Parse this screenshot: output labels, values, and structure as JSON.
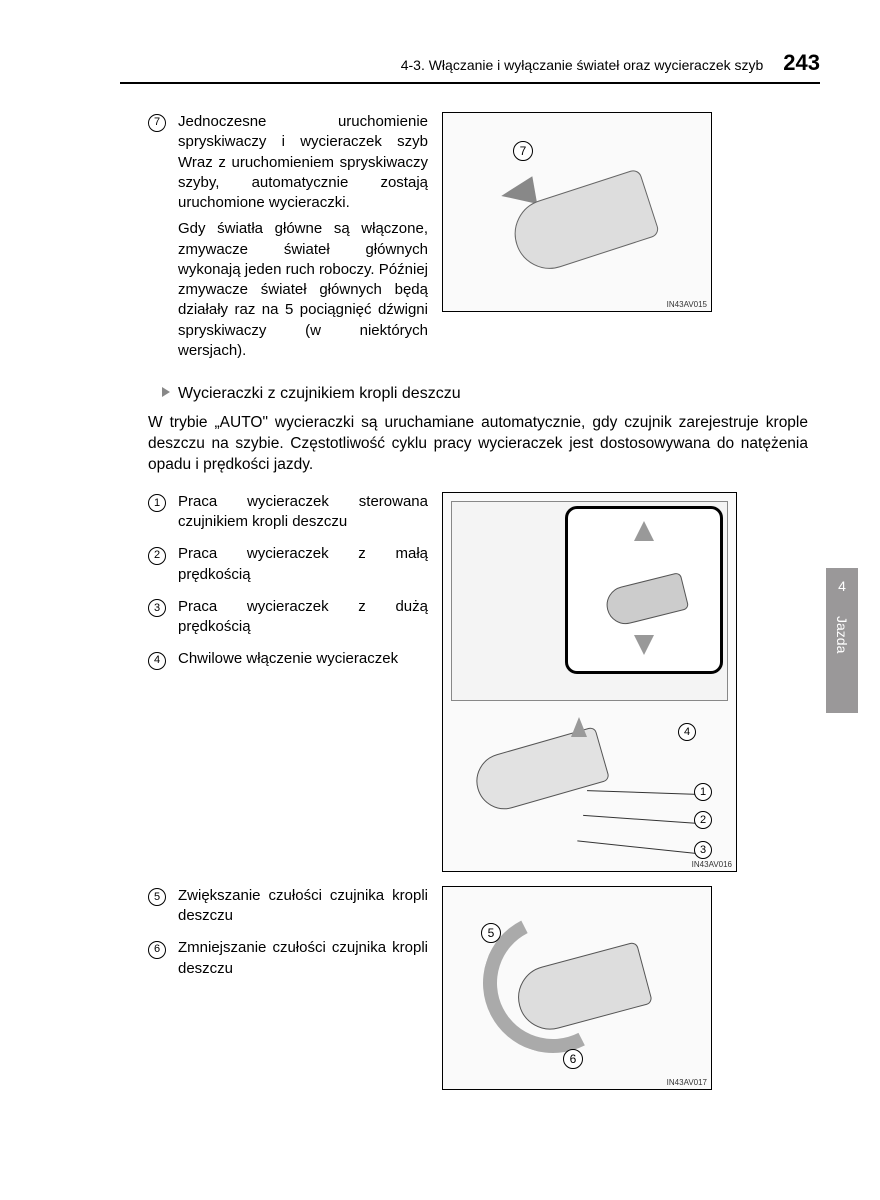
{
  "header": {
    "section": "4-3. Włączanie i wyłączanie świateł oraz wycieraczek szyb",
    "page_number": "243"
  },
  "side_tab": {
    "chapter": "4",
    "label": "Jazda"
  },
  "item7": {
    "num": "7",
    "title": "Jednoczesne uruchomienie spryskiwaczy i wycieraczek szyb",
    "p1": "Wraz z uruchomieniem spryskiwaczy szyby, automatycznie zostają uruchomione wycieraczki.",
    "p2": "Gdy światła główne są włączone, zmywacze świateł głównych wykonają jeden ruch roboczy. Później zmywacze świateł głównych będą działały raz na 5 pociągnięć dźwigni spryskiwaczy (w niektórych wersjach)."
  },
  "rain_sensor": {
    "subheading": "Wycieraczki z czujnikiem kropli deszczu",
    "intro": "W trybie „AUTO\" wycieraczki są uruchamiane automatycznie, gdy czujnik zarejestruje krople deszczu na szybie. Częstotliwość cyklu pracy wycieraczek jest dostosowywana do natężenia opadu i prędkości jazdy.",
    "items": [
      {
        "num": "1",
        "text": "Praca wycieraczek sterowana czujnikiem kropli deszczu"
      },
      {
        "num": "2",
        "text": "Praca wycieraczek z małą prędkością"
      },
      {
        "num": "3",
        "text": "Praca wycieraczek z dużą prędkością"
      },
      {
        "num": "4",
        "text": "Chwilowe włączenie wycieraczek"
      }
    ]
  },
  "sensitivity": {
    "items": [
      {
        "num": "5",
        "text": "Zwiększanie czułości czujnika kropli deszczu"
      },
      {
        "num": "6",
        "text": "Zmniejszanie czułości czujnika kropli deszczu"
      }
    ]
  },
  "figures": {
    "fig1_code": "IN43AV015",
    "fig2_code": "IN43AV016",
    "fig3_code": "IN43AV017",
    "callouts": {
      "n1": "1",
      "n2": "2",
      "n3": "3",
      "n4": "4",
      "n5": "5",
      "n6": "6",
      "n7": "7"
    }
  },
  "colors": {
    "tab_bg": "#9a9899",
    "rule": "#000000",
    "arrow_gray": "#888888"
  }
}
